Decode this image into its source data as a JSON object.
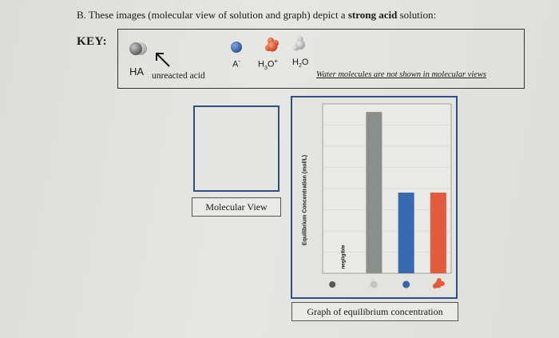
{
  "heading": {
    "prefix": "B. These images (molecular view of solution and graph) depict a ",
    "bold": "strong acid",
    "suffix": " solution:"
  },
  "key": {
    "label": "KEY:",
    "ha_label": "HA",
    "unreacted_label": "unreacted acid",
    "a_minus_label": "A",
    "a_minus_charge": "-",
    "h3o_label": "H",
    "h3o_sub": "3",
    "h3o_o": "O",
    "h3o_charge": "+",
    "h2o_label": "H",
    "h2o_sub": "2",
    "h2o_o": "O",
    "water_note": "Water molecules are not shown in molecular views"
  },
  "molecular_view": {
    "caption": "Molecular View"
  },
  "colors": {
    "ha": "#6f6f6f",
    "a_minus": "#3565b0",
    "h3o": "#e05a34",
    "h2o": "#9a9a9a",
    "box_border": "#2d4f86"
  },
  "graph": {
    "caption": "Graph of equilibrium concentration"
  },
  "chart_data": {
    "type": "bar",
    "categories": [
      "HA",
      "H2O",
      "A-",
      "H3O+"
    ],
    "values": [
      0,
      1.0,
      0.5,
      0.5
    ],
    "colors": [
      "#6f6f6f",
      "#8b8f8c",
      "#3868ad",
      "#e25b3c"
    ],
    "ylabel": "Equilibrium Concentration (mol/L)",
    "annotation": "negligible",
    "ylim": [
      0,
      1.05
    ],
    "grid": true
  }
}
